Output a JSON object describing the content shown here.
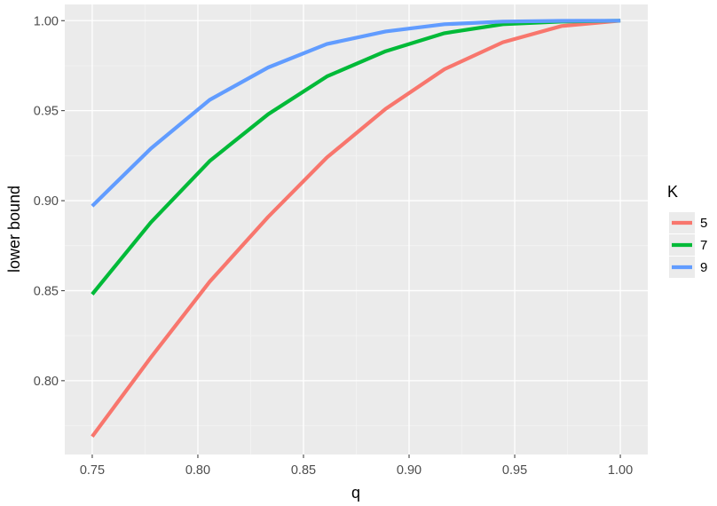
{
  "chart_data": {
    "type": "line",
    "xlabel": "q",
    "ylabel": "lower bound",
    "xlim": [
      0.737,
      1.013
    ],
    "ylim": [
      0.759,
      1.009
    ],
    "x_ticks": [
      "0.75",
      "0.80",
      "0.85",
      "0.90",
      "0.95",
      "1.00"
    ],
    "y_ticks": [
      "0.80",
      "0.85",
      "0.90",
      "0.95",
      "1.00"
    ],
    "grid": true,
    "legend": {
      "title": "K",
      "position": "right"
    },
    "x": [
      0.75,
      0.7778,
      0.8056,
      0.8333,
      0.8611,
      0.8889,
      0.9167,
      0.9444,
      0.9722,
      1.0
    ],
    "series": [
      {
        "name": "5",
        "color": "#F8766D",
        "values": [
          0.769,
          0.813,
          0.855,
          0.891,
          0.924,
          0.951,
          0.973,
          0.988,
          0.997,
          1.0
        ]
      },
      {
        "name": "7",
        "color": "#00BA38",
        "values": [
          0.848,
          0.888,
          0.922,
          0.948,
          0.969,
          0.983,
          0.993,
          0.998,
          0.9995,
          1.0
        ]
      },
      {
        "name": "9",
        "color": "#619CFF",
        "values": [
          0.897,
          0.929,
          0.956,
          0.974,
          0.987,
          0.994,
          0.998,
          0.9995,
          0.9999,
          1.0
        ]
      }
    ]
  }
}
